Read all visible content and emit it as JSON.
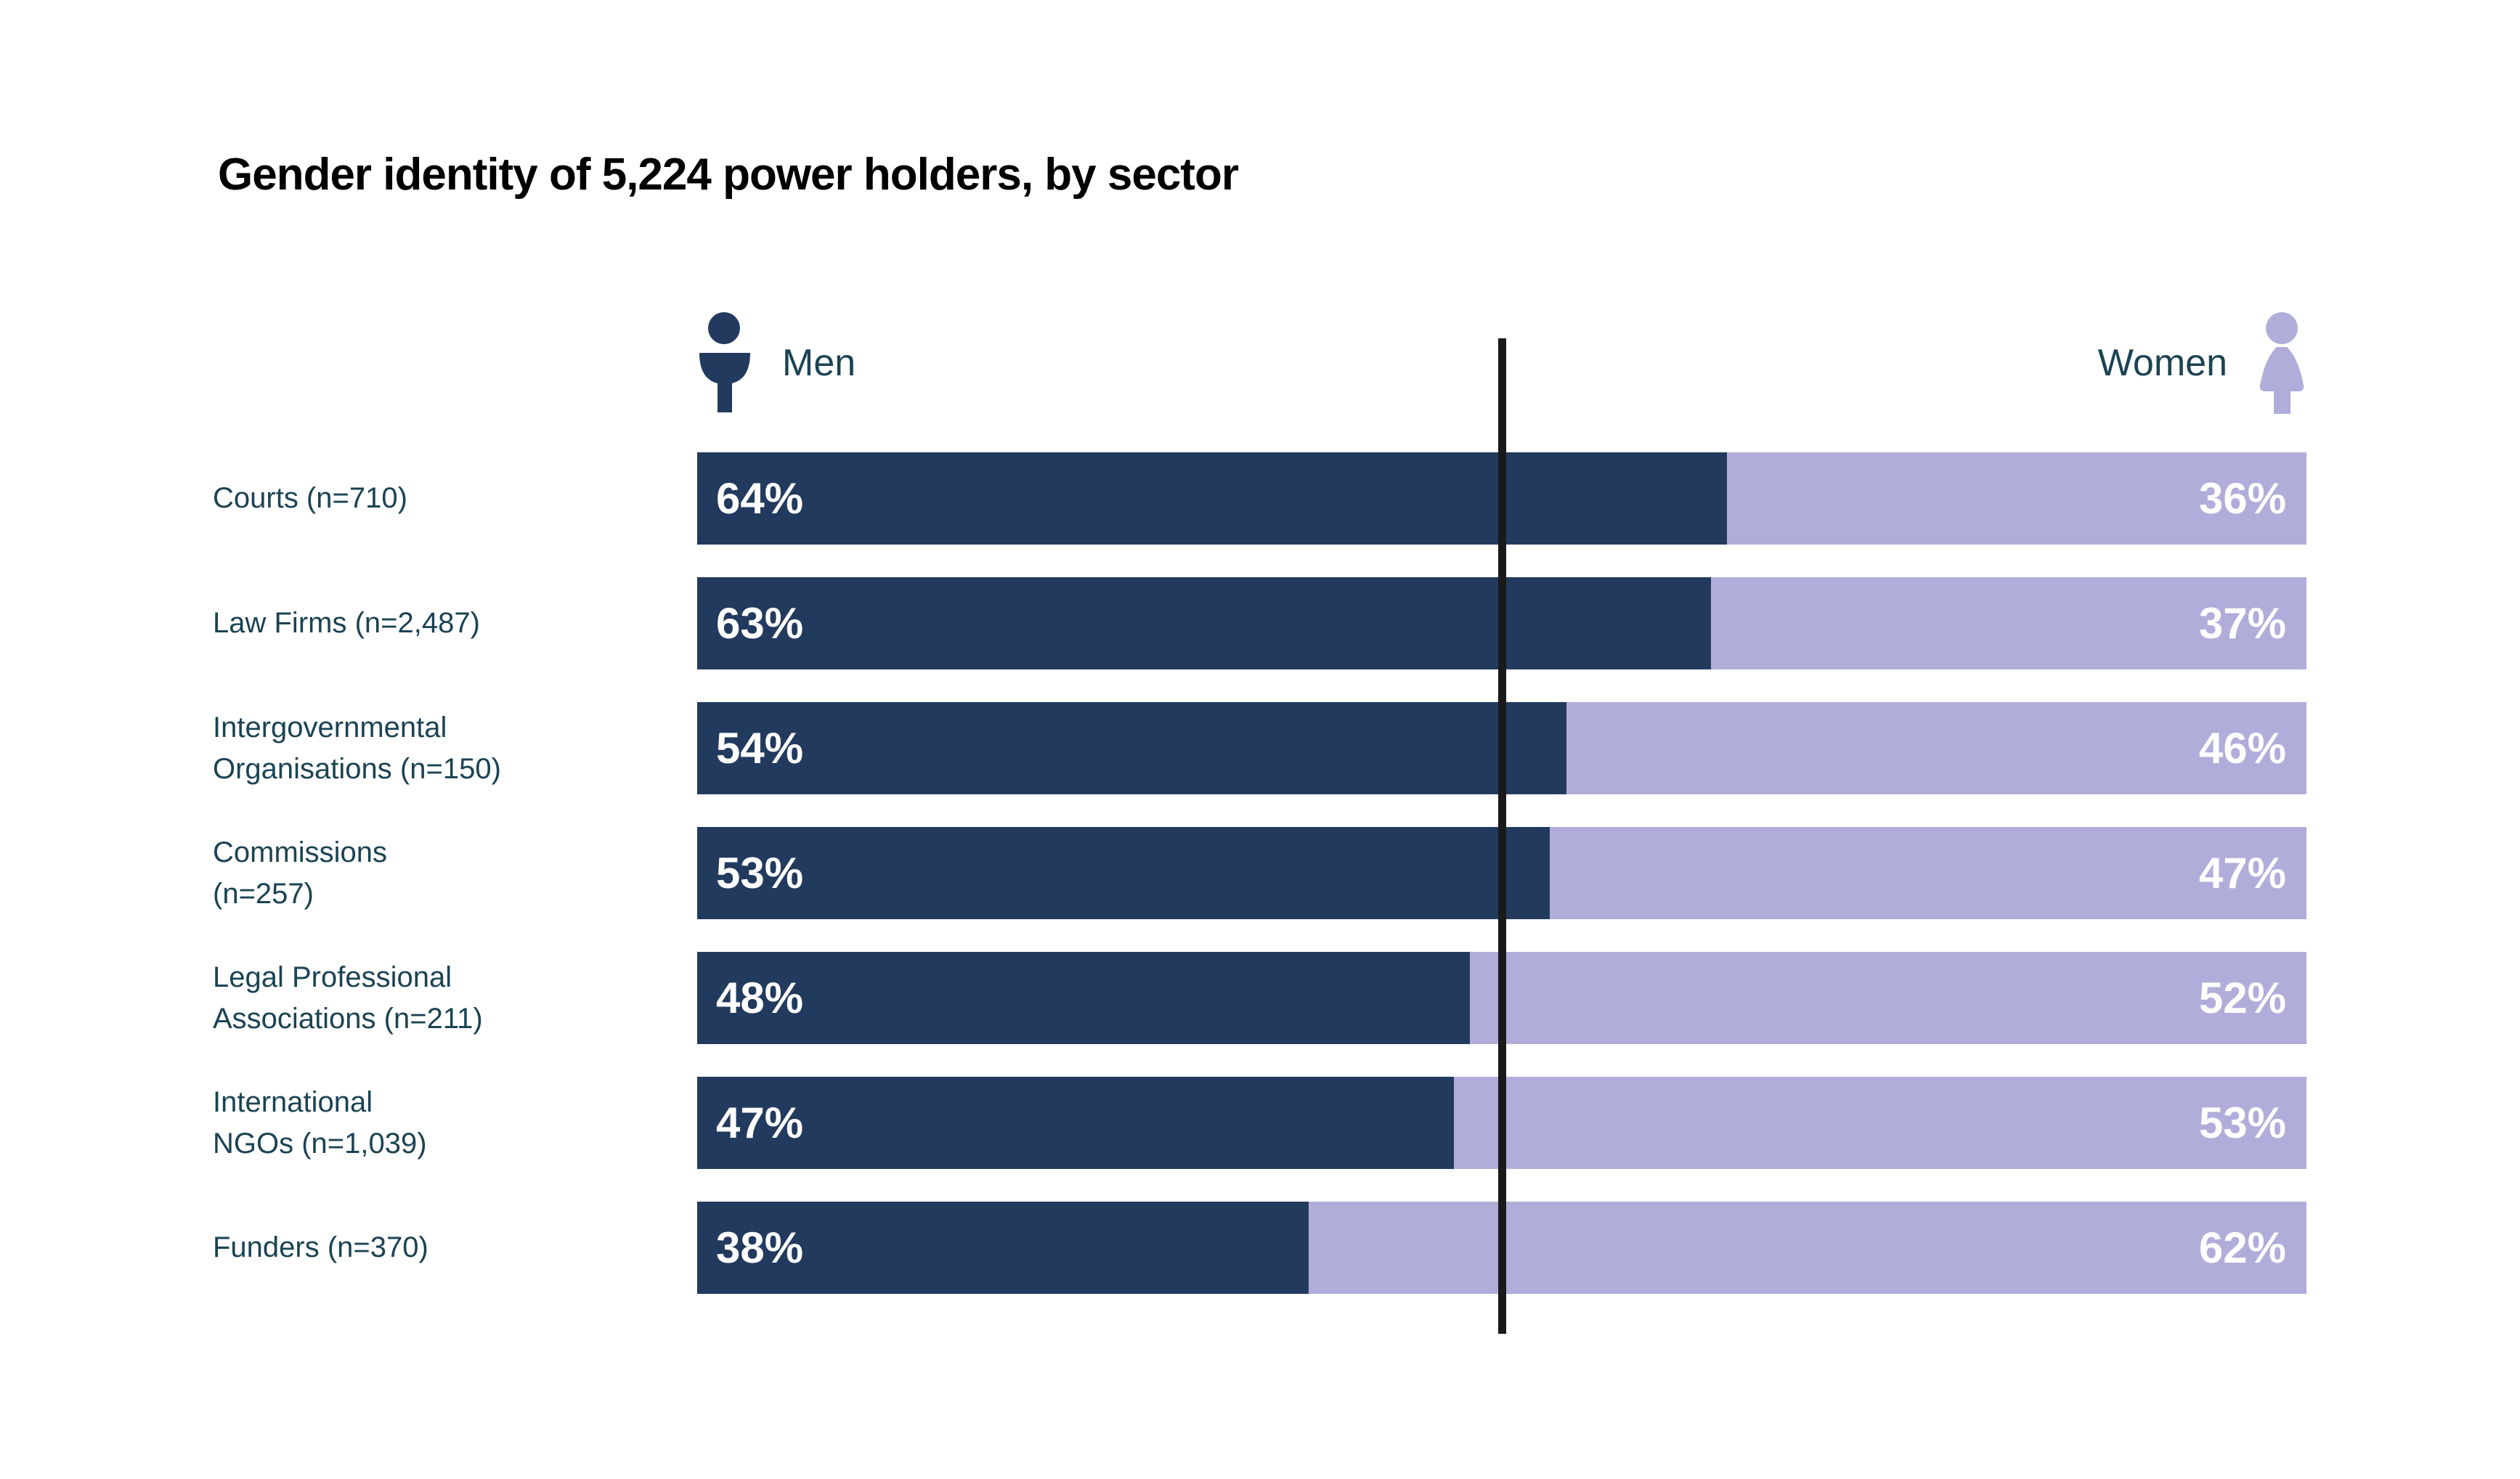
{
  "title": "Gender identity of 5,224 power holders, by sector",
  "legend": {
    "men_label": "Men",
    "women_label": "Women",
    "men_icon": "man-pictogram",
    "women_icon": "woman-pictogram"
  },
  "colors": {
    "men": "#223A5E",
    "women": "#B0ADDB",
    "label_text": "#1B4353",
    "title_text": "#000000",
    "divider": "#1A1A1A",
    "value_text": "#FFFFFF",
    "background": "#FFFFFF"
  },
  "chart_data": {
    "type": "bar",
    "orientation": "horizontal",
    "stacked": true,
    "title": "Gender identity of 5,224 power holders, by sector",
    "categories": [
      "Courts (n=710)",
      "Law Firms (n=2,487)",
      "Intergovernmental Organisations (n=150)",
      "Commissions (n=257)",
      "Legal Professional Associations (n=211)",
      "International NGOs (n=1,039)",
      "Funders (n=370)"
    ],
    "category_label_lines": [
      [
        "Courts (n=710)"
      ],
      [
        "Law Firms (n=2,487)"
      ],
      [
        "Intergovernmental",
        "Organisations (n=150)"
      ],
      [
        "Commissions",
        "(n=257)"
      ],
      [
        "Legal Professional",
        "Associations (n=211)"
      ],
      [
        "International",
        "NGOs (n=1,039)"
      ],
      [
        "Funders (n=370)"
      ]
    ],
    "series": [
      {
        "name": "Men",
        "color": "#223A5E",
        "values": [
          64,
          63,
          54,
          53,
          48,
          47,
          38
        ]
      },
      {
        "name": "Women",
        "color": "#B0ADDB",
        "values": [
          36,
          37,
          46,
          47,
          52,
          53,
          62
        ]
      }
    ],
    "value_suffix": "%",
    "xlim": [
      0,
      100
    ],
    "center_line_at": 50,
    "grid": false,
    "legend_position": "top"
  }
}
